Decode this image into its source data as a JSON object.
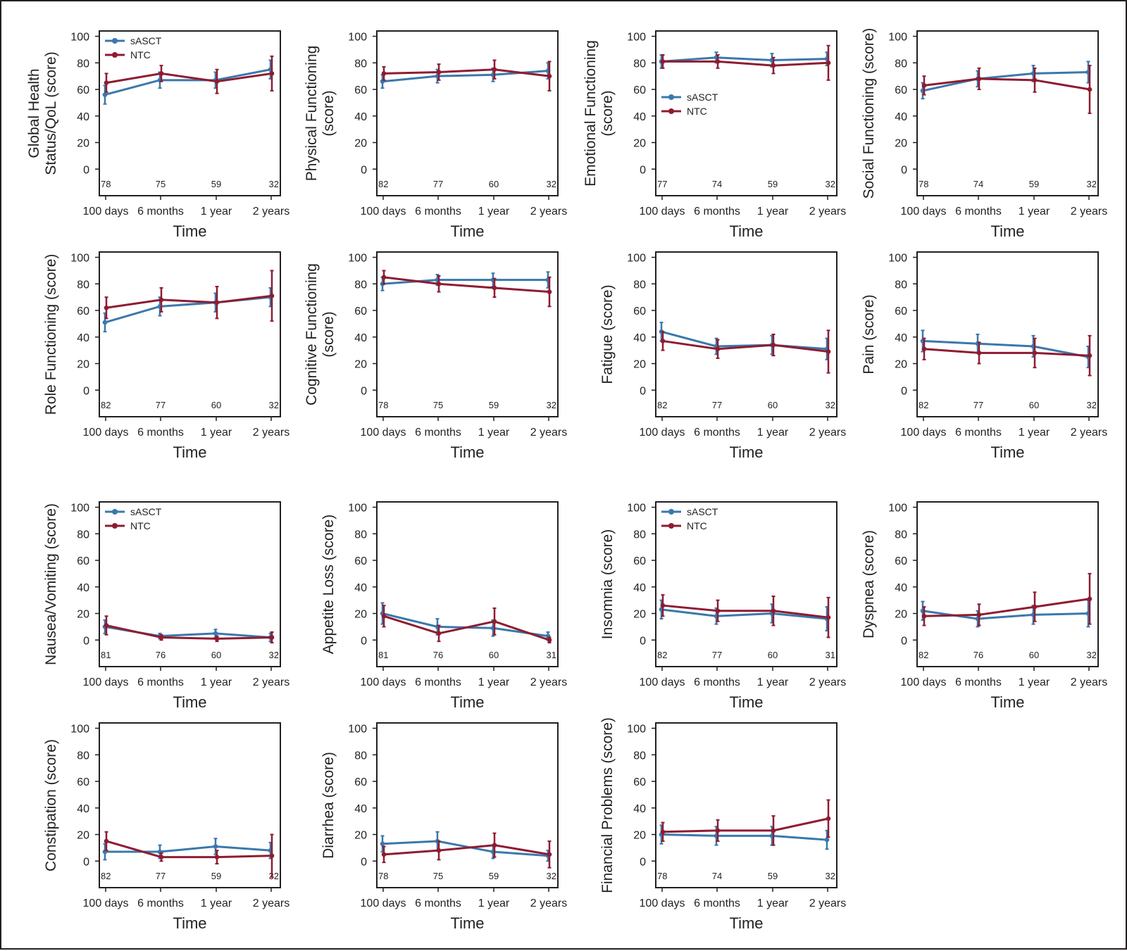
{
  "colors": {
    "sascT": "#3a78ac",
    "ntc": "#8e1c31",
    "frame": "#231f20"
  },
  "legend": {
    "sascT": "sASCT",
    "ntc": "NTC"
  },
  "x_axis": {
    "categories": [
      "100 days",
      "6 months",
      "1 year",
      "2 years"
    ],
    "label": "Time"
  },
  "y_axis": {
    "ticks": [
      0,
      20,
      40,
      60,
      80,
      100
    ],
    "ylim": [
      -20,
      104
    ]
  },
  "chart_data": [
    {
      "type": "line",
      "ylabel": [
        "Global Health",
        "Status/QoL (score)"
      ],
      "legend": "top-left",
      "categories": [
        "100 days",
        "6 months",
        "1 year",
        "2 years"
      ],
      "ylim": [
        -20,
        104
      ],
      "n_labels": [
        "78",
        "75",
        "59",
        "32"
      ],
      "series": [
        {
          "name": "sASCT",
          "values": [
            56,
            67,
            67,
            75
          ],
          "err": [
            7,
            6,
            6,
            7
          ]
        },
        {
          "name": "NTC",
          "values": [
            65,
            72,
            66,
            72
          ],
          "err": [
            7,
            6,
            9,
            13
          ]
        }
      ]
    },
    {
      "type": "line",
      "ylabel": [
        "Physical Functioning",
        "(score)"
      ],
      "legend": "none",
      "categories": [
        "100 days",
        "6 months",
        "1 year",
        "2 years"
      ],
      "ylim": [
        -20,
        104
      ],
      "n_labels": [
        "82",
        "77",
        "60",
        "32"
      ],
      "series": [
        {
          "name": "sASCT",
          "values": [
            66,
            70,
            71,
            74
          ],
          "err": [
            5,
            5,
            5,
            6
          ]
        },
        {
          "name": "NTC",
          "values": [
            72,
            73,
            75,
            70
          ],
          "err": [
            5,
            6,
            7,
            11
          ]
        }
      ]
    },
    {
      "type": "line",
      "ylabel": [
        "Emotional Functioning",
        "(score)"
      ],
      "legend": "mid-left",
      "categories": [
        "100 days",
        "6 months",
        "1 year",
        "2 years"
      ],
      "ylim": [
        -20,
        104
      ],
      "n_labels": [
        "77",
        "74",
        "59",
        "32"
      ],
      "series": [
        {
          "name": "sASCT",
          "values": [
            81,
            84,
            82,
            83
          ],
          "err": [
            5,
            4,
            5,
            5
          ]
        },
        {
          "name": "NTC",
          "values": [
            81,
            81,
            78,
            80
          ],
          "err": [
            5,
            5,
            6,
            13
          ]
        }
      ]
    },
    {
      "type": "line",
      "ylabel": [
        "Social Functioning (score)"
      ],
      "legend": "none",
      "categories": [
        "100 days",
        "6 months",
        "1 year",
        "2 years"
      ],
      "ylim": [
        -20,
        104
      ],
      "n_labels": [
        "78",
        "74",
        "59",
        "32"
      ],
      "series": [
        {
          "name": "sASCT",
          "values": [
            59,
            68,
            72,
            73
          ],
          "err": [
            6,
            6,
            6,
            8
          ]
        },
        {
          "name": "NTC",
          "values": [
            63,
            68,
            67,
            60
          ],
          "err": [
            7,
            8,
            9,
            18
          ]
        }
      ]
    },
    {
      "type": "line",
      "ylabel": [
        "Role Functioning (score)"
      ],
      "legend": "none",
      "categories": [
        "100 days",
        "6 months",
        "1 year",
        "2 years"
      ],
      "ylim": [
        -20,
        104
      ],
      "n_labels": [
        "82",
        "77",
        "60",
        "32"
      ],
      "series": [
        {
          "name": "sASCT",
          "values": [
            51,
            63,
            66,
            70
          ],
          "err": [
            7,
            7,
            7,
            7
          ]
        },
        {
          "name": "NTC",
          "values": [
            62,
            68,
            66,
            71
          ],
          "err": [
            8,
            9,
            12,
            19
          ]
        }
      ]
    },
    {
      "type": "line",
      "ylabel": [
        "Cognitive Functioning",
        "(score)"
      ],
      "legend": "none",
      "categories": [
        "100 days",
        "6 months",
        "1 year",
        "2 years"
      ],
      "ylim": [
        -20,
        104
      ],
      "n_labels": [
        "78",
        "75",
        "59",
        "32"
      ],
      "series": [
        {
          "name": "sASCT",
          "values": [
            80,
            83,
            83,
            83
          ],
          "err": [
            5,
            4,
            5,
            6
          ]
        },
        {
          "name": "NTC",
          "values": [
            85,
            80,
            77,
            74
          ],
          "err": [
            5,
            6,
            7,
            11
          ]
        }
      ]
    },
    {
      "type": "line",
      "ylabel": [
        "Fatigue (score)"
      ],
      "legend": "none",
      "categories": [
        "100 days",
        "6 months",
        "1 year",
        "2 years"
      ],
      "ylim": [
        -20,
        104
      ],
      "n_labels": [
        "82",
        "77",
        "60",
        "32"
      ],
      "series": [
        {
          "name": "sASCT",
          "values": [
            44,
            33,
            34,
            31
          ],
          "err": [
            7,
            6,
            7,
            8
          ]
        },
        {
          "name": "NTC",
          "values": [
            37,
            31,
            34,
            29
          ],
          "err": [
            7,
            7,
            8,
            16
          ]
        }
      ]
    },
    {
      "type": "line",
      "ylabel": [
        "Pain (score)"
      ],
      "legend": "none",
      "categories": [
        "100 days",
        "6 months",
        "1 year",
        "2 years"
      ],
      "ylim": [
        -20,
        104
      ],
      "n_labels": [
        "82",
        "77",
        "60",
        "32"
      ],
      "series": [
        {
          "name": "sASCT",
          "values": [
            37,
            35,
            33,
            25
          ],
          "err": [
            8,
            7,
            8,
            8
          ]
        },
        {
          "name": "NTC",
          "values": [
            31,
            28,
            28,
            26
          ],
          "err": [
            8,
            8,
            11,
            15
          ]
        }
      ]
    },
    {
      "type": "line",
      "ylabel": [
        "Nausea/Vomiting (score)"
      ],
      "legend": "top-left",
      "categories": [
        "100 days",
        "6 months",
        "1 year",
        "2 years"
      ],
      "ylim": [
        -20,
        104
      ],
      "n_labels": [
        "81",
        "76",
        "60",
        "32"
      ],
      "series": [
        {
          "name": "sASCT",
          "values": [
            10,
            3,
            5,
            2
          ],
          "err": [
            5,
            2,
            3,
            3
          ]
        },
        {
          "name": "NTC",
          "values": [
            11,
            2,
            1,
            2
          ],
          "err": [
            7,
            2,
            2,
            4
          ]
        }
      ]
    },
    {
      "type": "line",
      "ylabel": [
        "Appetite Loss (score)"
      ],
      "legend": "none",
      "categories": [
        "100 days",
        "6 months",
        "1 year",
        "2 years"
      ],
      "ylim": [
        -20,
        104
      ],
      "n_labels": [
        "81",
        "76",
        "60",
        "31"
      ],
      "series": [
        {
          "name": "sASCT",
          "values": [
            20,
            10,
            9,
            3
          ],
          "err": [
            8,
            6,
            6,
            3
          ]
        },
        {
          "name": "NTC",
          "values": [
            18,
            5,
            14,
            0
          ],
          "err": [
            8,
            6,
            10,
            2
          ]
        }
      ]
    },
    {
      "type": "line",
      "ylabel": [
        "Insomnia (score)"
      ],
      "legend": "top-left",
      "categories": [
        "100 days",
        "6 months",
        "1 year",
        "2 years"
      ],
      "ylim": [
        -20,
        104
      ],
      "n_labels": [
        "82",
        "77",
        "60",
        "31"
      ],
      "series": [
        {
          "name": "sASCT",
          "values": [
            23,
            18,
            20,
            16
          ],
          "err": [
            7,
            6,
            7,
            9
          ]
        },
        {
          "name": "NTC",
          "values": [
            26,
            22,
            22,
            17
          ],
          "err": [
            8,
            8,
            11,
            15
          ]
        }
      ]
    },
    {
      "type": "line",
      "ylabel": [
        "Dyspnea (score)"
      ],
      "legend": "none",
      "categories": [
        "100 days",
        "6 months",
        "1 year",
        "2 years"
      ],
      "ylim": [
        -20,
        104
      ],
      "n_labels": [
        "82",
        "76",
        "60",
        "32"
      ],
      "series": [
        {
          "name": "sASCT",
          "values": [
            22,
            16,
            19,
            20
          ],
          "err": [
            7,
            6,
            7,
            10
          ]
        },
        {
          "name": "NTC",
          "values": [
            18,
            19,
            25,
            31
          ],
          "err": [
            7,
            8,
            11,
            19
          ]
        }
      ]
    },
    {
      "type": "line",
      "ylabel": [
        "Constipation (score)"
      ],
      "legend": "none",
      "categories": [
        "100 days",
        "6 months",
        "1 year",
        "2 years"
      ],
      "ylim": [
        -20,
        104
      ],
      "n_labels": [
        "82",
        "77",
        "59",
        "32"
      ],
      "series": [
        {
          "name": "sASCT",
          "values": [
            7,
            7,
            11,
            8
          ],
          "err": [
            6,
            5,
            6,
            6
          ]
        },
        {
          "name": "NTC",
          "values": [
            15,
            3,
            3,
            4
          ],
          "err": [
            7,
            3,
            5,
            16
          ]
        }
      ]
    },
    {
      "type": "line",
      "ylabel": [
        "Diarrhea (score)"
      ],
      "legend": "none",
      "categories": [
        "100 days",
        "6 months",
        "1 year",
        "2 years"
      ],
      "ylim": [
        -20,
        104
      ],
      "n_labels": [
        "78",
        "75",
        "59",
        "32"
      ],
      "series": [
        {
          "name": "sASCT",
          "values": [
            13,
            15,
            7,
            4
          ],
          "err": [
            6,
            7,
            5,
            4
          ]
        },
        {
          "name": "NTC",
          "values": [
            5,
            8,
            12,
            5
          ],
          "err": [
            6,
            7,
            9,
            10
          ]
        }
      ]
    },
    {
      "type": "line",
      "ylabel": [
        "Financial Problems (score)"
      ],
      "legend": "none",
      "categories": [
        "100 days",
        "6 months",
        "1 year",
        "2 years"
      ],
      "ylim": [
        -20,
        104
      ],
      "n_labels": [
        "78",
        "74",
        "59",
        "32"
      ],
      "series": [
        {
          "name": "sASCT",
          "values": [
            20,
            19,
            19,
            16
          ],
          "err": [
            7,
            7,
            7,
            7
          ]
        },
        {
          "name": "NTC",
          "values": [
            22,
            23,
            23,
            32
          ],
          "err": [
            7,
            8,
            11,
            14
          ]
        }
      ]
    }
  ]
}
